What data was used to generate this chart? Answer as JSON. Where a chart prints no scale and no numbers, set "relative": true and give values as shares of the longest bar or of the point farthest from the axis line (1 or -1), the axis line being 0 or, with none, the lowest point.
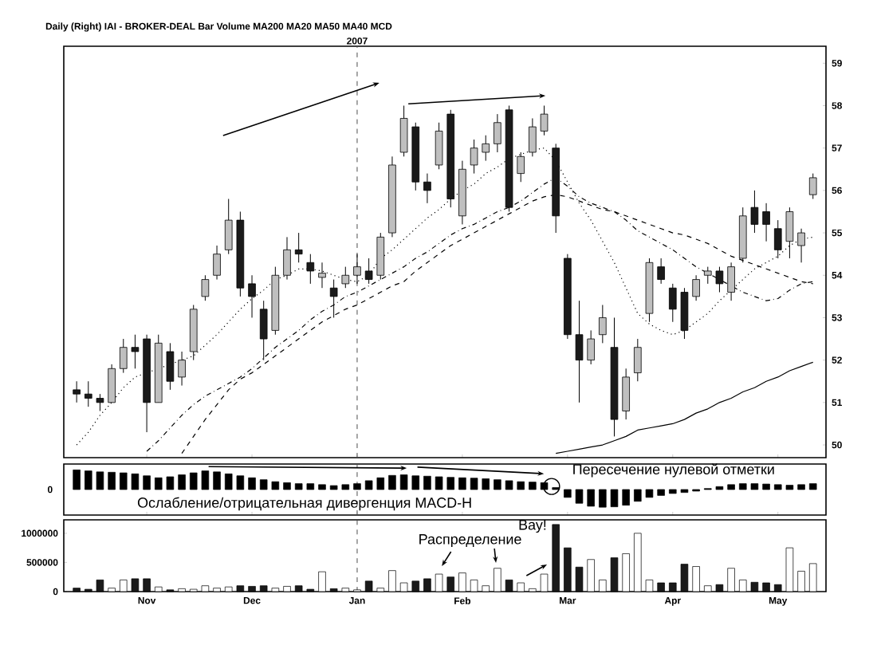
{
  "chart_data": [
    {
      "type": "candlestick",
      "title": "Daily (Right) IAI - BROKER-DEAL Bar Volume MA200 MA20 MA50 MA40 MCD",
      "categories": [
        null,
        null,
        null,
        null,
        null,
        null,
        "Nov",
        null,
        null,
        null,
        null,
        null,
        null,
        null,
        null,
        "Dec",
        null,
        null,
        null,
        null,
        null,
        null,
        null,
        null,
        "Jan",
        null,
        null,
        null,
        null,
        null,
        null,
        null,
        null,
        "Feb",
        null,
        null,
        null,
        null,
        null,
        null,
        null,
        null,
        "Mar",
        null,
        null,
        null,
        null,
        null,
        null,
        null,
        null,
        "Apr",
        null,
        null,
        null,
        null,
        null,
        null,
        null,
        null,
        "May",
        null,
        null,
        null
      ],
      "ohlc": [
        [
          51.3,
          51.5,
          51.0,
          51.2
        ],
        [
          51.2,
          51.5,
          50.9,
          51.1
        ],
        [
          51.1,
          51.2,
          50.8,
          51.0
        ],
        [
          51.0,
          51.9,
          51.0,
          51.8
        ],
        [
          51.8,
          52.5,
          51.7,
          52.3
        ],
        [
          52.3,
          52.6,
          51.8,
          52.2
        ],
        [
          52.5,
          52.6,
          50.3,
          51.0
        ],
        [
          51.0,
          52.6,
          51.0,
          52.4
        ],
        [
          52.2,
          52.4,
          51.3,
          51.5
        ],
        [
          51.6,
          52.2,
          51.4,
          52.0
        ],
        [
          52.2,
          53.3,
          52.0,
          53.2
        ],
        [
          53.5,
          54.0,
          53.4,
          53.9
        ],
        [
          54.0,
          54.7,
          53.9,
          54.5
        ],
        [
          54.6,
          55.8,
          54.5,
          55.3
        ],
        [
          55.3,
          55.5,
          53.5,
          53.7
        ],
        [
          53.8,
          54.0,
          53.0,
          53.5
        ],
        [
          53.2,
          53.4,
          52.0,
          52.5
        ],
        [
          52.7,
          54.2,
          52.6,
          54.0
        ],
        [
          54.0,
          54.9,
          53.9,
          54.6
        ],
        [
          54.6,
          55.0,
          54.3,
          54.5
        ],
        [
          54.3,
          54.5,
          53.8,
          54.1
        ],
        [
          53.95,
          54.3,
          53.7,
          54.05
        ],
        [
          53.7,
          53.9,
          53.0,
          53.5
        ],
        [
          53.8,
          54.2,
          53.7,
          54.0
        ],
        [
          54.0,
          54.5,
          53.8,
          54.2
        ],
        [
          54.1,
          54.4,
          53.8,
          53.9
        ],
        [
          54.0,
          55.0,
          53.9,
          54.9
        ],
        [
          55.0,
          56.8,
          54.9,
          56.6
        ],
        [
          56.9,
          58.0,
          56.8,
          57.7
        ],
        [
          57.5,
          57.6,
          56.0,
          56.2
        ],
        [
          56.2,
          56.4,
          55.7,
          56.0
        ],
        [
          56.6,
          57.6,
          56.5,
          57.4
        ],
        [
          57.8,
          57.9,
          55.6,
          55.8
        ],
        [
          55.4,
          56.7,
          55.2,
          56.5
        ],
        [
          56.6,
          57.2,
          56.4,
          57.0
        ],
        [
          56.9,
          57.3,
          56.7,
          57.1
        ],
        [
          57.1,
          57.8,
          56.9,
          57.6
        ],
        [
          57.9,
          58.0,
          55.5,
          55.6
        ],
        [
          56.4,
          56.9,
          56.2,
          56.8
        ],
        [
          56.9,
          57.7,
          56.8,
          57.5
        ],
        [
          57.4,
          58.0,
          57.3,
          57.8
        ],
        [
          57.0,
          57.1,
          55.0,
          55.4
        ],
        [
          54.4,
          54.5,
          52.5,
          52.6
        ],
        [
          52.6,
          53.4,
          51.0,
          52.0
        ],
        [
          52.0,
          52.7,
          51.9,
          52.5
        ],
        [
          52.6,
          53.3,
          52.4,
          53.0
        ],
        [
          52.3,
          53.0,
          50.2,
          50.6
        ],
        [
          50.8,
          51.8,
          50.6,
          51.6
        ],
        [
          51.7,
          52.5,
          51.5,
          52.3
        ],
        [
          53.1,
          54.4,
          52.9,
          54.3
        ],
        [
          54.2,
          54.4,
          53.8,
          53.9
        ],
        [
          53.7,
          53.8,
          52.9,
          53.2
        ],
        [
          53.6,
          53.7,
          52.5,
          52.7
        ],
        [
          53.5,
          54.0,
          53.4,
          53.9
        ],
        [
          54.0,
          54.2,
          53.8,
          54.1
        ],
        [
          54.1,
          54.2,
          53.6,
          53.8
        ],
        [
          53.6,
          54.3,
          53.4,
          54.2
        ],
        [
          54.4,
          55.6,
          54.3,
          55.4
        ],
        [
          55.6,
          56.0,
          55.0,
          55.2
        ],
        [
          55.5,
          55.7,
          54.8,
          55.2
        ],
        [
          55.1,
          55.3,
          54.4,
          54.6
        ],
        [
          54.8,
          55.6,
          54.4,
          55.5
        ],
        [
          54.7,
          55.1,
          54.3,
          55.0
        ],
        [
          55.9,
          56.4,
          55.8,
          56.3
        ]
      ],
      "colors": [
        "#1a1a1a",
        "#1a1a1a",
        "#1a1a1a",
        "#bfbfbf",
        "#bfbfbf",
        "#1a1a1a",
        "#1a1a1a",
        "#bfbfbf",
        "#1a1a1a",
        "#bfbfbf",
        "#bfbfbf",
        "#bfbfbf",
        "#bfbfbf",
        "#bfbfbf",
        "#1a1a1a",
        "#1a1a1a",
        "#1a1a1a",
        "#bfbfbf",
        "#bfbfbf",
        "#1a1a1a",
        "#1a1a1a",
        "#bfbfbf",
        "#1a1a1a",
        "#bfbfbf",
        "#bfbfbf",
        "#1a1a1a",
        "#bfbfbf",
        "#bfbfbf",
        "#bfbfbf",
        "#1a1a1a",
        "#1a1a1a",
        "#bfbfbf",
        "#1a1a1a",
        "#bfbfbf",
        "#bfbfbf",
        "#bfbfbf",
        "#bfbfbf",
        "#1a1a1a",
        "#bfbfbf",
        "#bfbfbf",
        "#bfbfbf",
        "#1a1a1a",
        "#1a1a1a",
        "#1a1a1a",
        "#bfbfbf",
        "#bfbfbf",
        "#1a1a1a",
        "#bfbfbf",
        "#bfbfbf",
        "#bfbfbf",
        "#1a1a1a",
        "#1a1a1a",
        "#1a1a1a",
        "#bfbfbf",
        "#bfbfbf",
        "#1a1a1a",
        "#bfbfbf",
        "#bfbfbf",
        "#1a1a1a",
        "#1a1a1a",
        "#1a1a1a",
        "#bfbfbf",
        "#bfbfbf",
        "#bfbfbf"
      ],
      "series": [
        {
          "type": "line",
          "color": "#000000",
          "line_style": "dotted",
          "values": [
            50.0,
            50.3,
            50.7,
            51.0,
            51.35,
            51.6,
            51.7,
            51.8,
            51.9,
            52.0,
            52.1,
            52.35,
            52.6,
            52.9,
            53.2,
            53.45,
            53.65,
            53.9,
            54.0,
            54.15,
            54.15,
            54.1,
            54.0,
            53.9,
            53.85,
            54.0,
            54.4,
            54.6,
            54.85,
            55.1,
            55.35,
            55.55,
            55.8,
            56.0,
            56.15,
            56.4,
            56.55,
            56.75,
            56.85,
            56.95,
            57.0,
            56.7,
            56.2,
            55.7,
            55.3,
            54.8,
            54.3,
            53.7,
            53.1,
            52.85,
            52.7,
            52.6,
            52.7,
            52.9,
            53.1,
            53.4,
            53.65,
            53.9,
            54.15,
            54.3,
            54.45,
            54.7,
            54.85,
            54.9
          ]
        },
        {
          "type": "line",
          "color": "#000000",
          "line_style": "dashdot",
          "values": [
            null,
            null,
            null,
            null,
            null,
            null,
            49.85,
            50.1,
            50.4,
            50.7,
            50.95,
            51.15,
            51.3,
            51.45,
            51.6,
            51.8,
            52.05,
            52.3,
            52.5,
            52.7,
            52.95,
            53.15,
            53.3,
            53.5,
            53.6,
            53.75,
            53.9,
            54.05,
            54.2,
            54.4,
            54.55,
            54.75,
            54.95,
            55.1,
            55.2,
            55.35,
            55.5,
            55.6,
            55.75,
            55.95,
            56.15,
            56.3,
            56.1,
            55.85,
            55.7,
            55.6,
            55.5,
            55.3,
            55.05,
            54.9,
            54.75,
            54.6,
            54.4,
            54.2,
            54.05,
            53.9,
            53.75,
            53.6,
            53.5,
            53.4,
            53.45,
            53.65,
            53.8,
            53.85
          ]
        },
        {
          "type": "line",
          "color": "#000000",
          "line_style": "dashed",
          "values": [
            null,
            null,
            null,
            null,
            null,
            null,
            null,
            null,
            null,
            49.8,
            50.2,
            50.6,
            50.95,
            51.3,
            51.55,
            51.7,
            51.9,
            52.1,
            52.3,
            52.5,
            52.7,
            52.9,
            53.05,
            53.2,
            53.3,
            53.45,
            53.6,
            53.75,
            53.85,
            54.1,
            54.3,
            54.5,
            54.7,
            54.85,
            55.0,
            55.15,
            55.3,
            55.45,
            55.6,
            55.75,
            55.85,
            55.9,
            55.85,
            55.75,
            55.65,
            55.55,
            55.5,
            55.4,
            55.3,
            55.2,
            55.1,
            55.0,
            54.95,
            54.85,
            54.75,
            54.6,
            54.45,
            54.35,
            54.25,
            54.15,
            54.05,
            53.95,
            53.85,
            53.8
          ]
        },
        {
          "type": "line",
          "color": "#000000",
          "line_style": "solid",
          "values": [
            null,
            null,
            null,
            null,
            null,
            null,
            null,
            null,
            null,
            null,
            null,
            null,
            null,
            null,
            null,
            null,
            null,
            null,
            null,
            null,
            null,
            null,
            null,
            null,
            null,
            null,
            null,
            null,
            null,
            null,
            null,
            null,
            null,
            null,
            null,
            null,
            null,
            null,
            null,
            null,
            null,
            49.8,
            49.85,
            49.9,
            49.95,
            50.0,
            50.1,
            50.2,
            50.35,
            50.4,
            50.45,
            50.5,
            50.6,
            50.75,
            50.85,
            51.0,
            51.1,
            51.25,
            51.35,
            51.5,
            51.6,
            51.75,
            51.85,
            51.95
          ]
        }
      ],
      "ylim": [
        49.7,
        59.4
      ],
      "yticks": [
        50,
        51,
        52,
        53,
        54,
        55,
        56,
        57,
        58,
        59
      ],
      "tick_labels": "y",
      "grid": false,
      "ref_lines": [
        {
          "axis": "x",
          "value": "Jan",
          "label": "2007",
          "line_style": "dashed"
        }
      ]
    },
    {
      "type": "bar",
      "relative": true,
      "color": "#000000",
      "categories": [
        null,
        null,
        null,
        null,
        null,
        null,
        "Nov",
        null,
        null,
        null,
        null,
        null,
        null,
        null,
        null,
        "Dec",
        null,
        null,
        null,
        null,
        null,
        null,
        null,
        null,
        "Jan",
        null,
        null,
        null,
        null,
        null,
        null,
        null,
        null,
        "Feb",
        null,
        null,
        null,
        null,
        null,
        null,
        null,
        null,
        "Mar",
        null,
        null,
        null,
        null,
        null,
        null,
        null,
        null,
        "Apr",
        null,
        null,
        null,
        null,
        null,
        null,
        null,
        null,
        "May",
        null,
        null,
        null
      ],
      "values": [
        1.0,
        0.95,
        0.9,
        0.88,
        0.85,
        0.8,
        0.7,
        0.6,
        0.65,
        0.75,
        0.85,
        0.95,
        0.9,
        0.8,
        0.7,
        0.6,
        0.5,
        0.4,
        0.35,
        0.3,
        0.3,
        0.25,
        0.2,
        0.25,
        0.3,
        0.45,
        0.6,
        0.72,
        0.75,
        0.7,
        0.68,
        0.65,
        0.62,
        0.6,
        0.58,
        0.55,
        0.5,
        0.45,
        0.4,
        0.38,
        0.35,
        0.1,
        -0.4,
        -0.7,
        -0.85,
        -0.9,
        -0.88,
        -0.8,
        -0.6,
        -0.4,
        -0.3,
        -0.2,
        -0.15,
        -0.08,
        0.05,
        0.15,
        0.25,
        0.3,
        0.3,
        0.28,
        0.25,
        0.22,
        0.25,
        0.3
      ],
      "tick_labels": false,
      "annotations": [
        "0",
        "Ослабление/отрицательная дивергенция MACD-H",
        "Пересечение нулевой отметки"
      ],
      "ref_lines": [
        {
          "axis": "x",
          "value": "Jan",
          "line_style": "dashed"
        }
      ]
    },
    {
      "type": "bar",
      "categories": [
        null,
        null,
        null,
        null,
        null,
        null,
        "Nov",
        null,
        null,
        null,
        null,
        null,
        null,
        null,
        null,
        "Dec",
        null,
        null,
        null,
        null,
        null,
        null,
        null,
        null,
        "Jan",
        null,
        null,
        null,
        null,
        null,
        null,
        null,
        null,
        "Feb",
        null,
        null,
        null,
        null,
        null,
        null,
        null,
        null,
        "Mar",
        null,
        null,
        null,
        null,
        null,
        null,
        null,
        null,
        "Apr",
        null,
        null,
        null,
        null,
        null,
        null,
        null,
        null,
        "May",
        null,
        null,
        null
      ],
      "values": [
        60000,
        40000,
        200000,
        60000,
        200000,
        220000,
        220000,
        80000,
        30000,
        50000,
        40000,
        100000,
        60000,
        80000,
        100000,
        90000,
        100000,
        60000,
        90000,
        100000,
        40000,
        340000,
        50000,
        60000,
        30000,
        180000,
        60000,
        360000,
        150000,
        180000,
        220000,
        300000,
        250000,
        320000,
        200000,
        100000,
        400000,
        200000,
        150000,
        50000,
        300000,
        1150000,
        750000,
        420000,
        550000,
        200000,
        580000,
        650000,
        1000000,
        200000,
        150000,
        150000,
        470000,
        430000,
        100000,
        120000,
        400000,
        200000,
        160000,
        150000,
        120000,
        750000,
        350000,
        480000
      ],
      "colors": [
        "#1a1a1a",
        "#1a1a1a",
        "#1a1a1a",
        "#ffffff",
        "#ffffff",
        "#1a1a1a",
        "#1a1a1a",
        "#ffffff",
        "#1a1a1a",
        "#ffffff",
        "#ffffff",
        "#ffffff",
        "#ffffff",
        "#ffffff",
        "#1a1a1a",
        "#1a1a1a",
        "#1a1a1a",
        "#ffffff",
        "#ffffff",
        "#1a1a1a",
        "#1a1a1a",
        "#ffffff",
        "#1a1a1a",
        "#ffffff",
        "#ffffff",
        "#1a1a1a",
        "#ffffff",
        "#ffffff",
        "#ffffff",
        "#1a1a1a",
        "#1a1a1a",
        "#ffffff",
        "#1a1a1a",
        "#ffffff",
        "#ffffff",
        "#ffffff",
        "#ffffff",
        "#1a1a1a",
        "#ffffff",
        "#ffffff",
        "#ffffff",
        "#1a1a1a",
        "#1a1a1a",
        "#1a1a1a",
        "#ffffff",
        "#ffffff",
        "#1a1a1a",
        "#ffffff",
        "#ffffff",
        "#ffffff",
        "#1a1a1a",
        "#1a1a1a",
        "#1a1a1a",
        "#ffffff",
        "#ffffff",
        "#1a1a1a",
        "#ffffff",
        "#ffffff",
        "#1a1a1a",
        "#1a1a1a",
        "#1a1a1a",
        "#ffffff",
        "#ffffff",
        "#ffffff"
      ],
      "ylim": [
        0,
        1230000
      ],
      "yticks": [
        0,
        500000,
        1000000
      ],
      "annotations": [
        "Распределение",
        "Вау!"
      ],
      "ref_lines": [
        {
          "axis": "x",
          "value": "Jan",
          "line_style": "dashed"
        }
      ]
    }
  ]
}
